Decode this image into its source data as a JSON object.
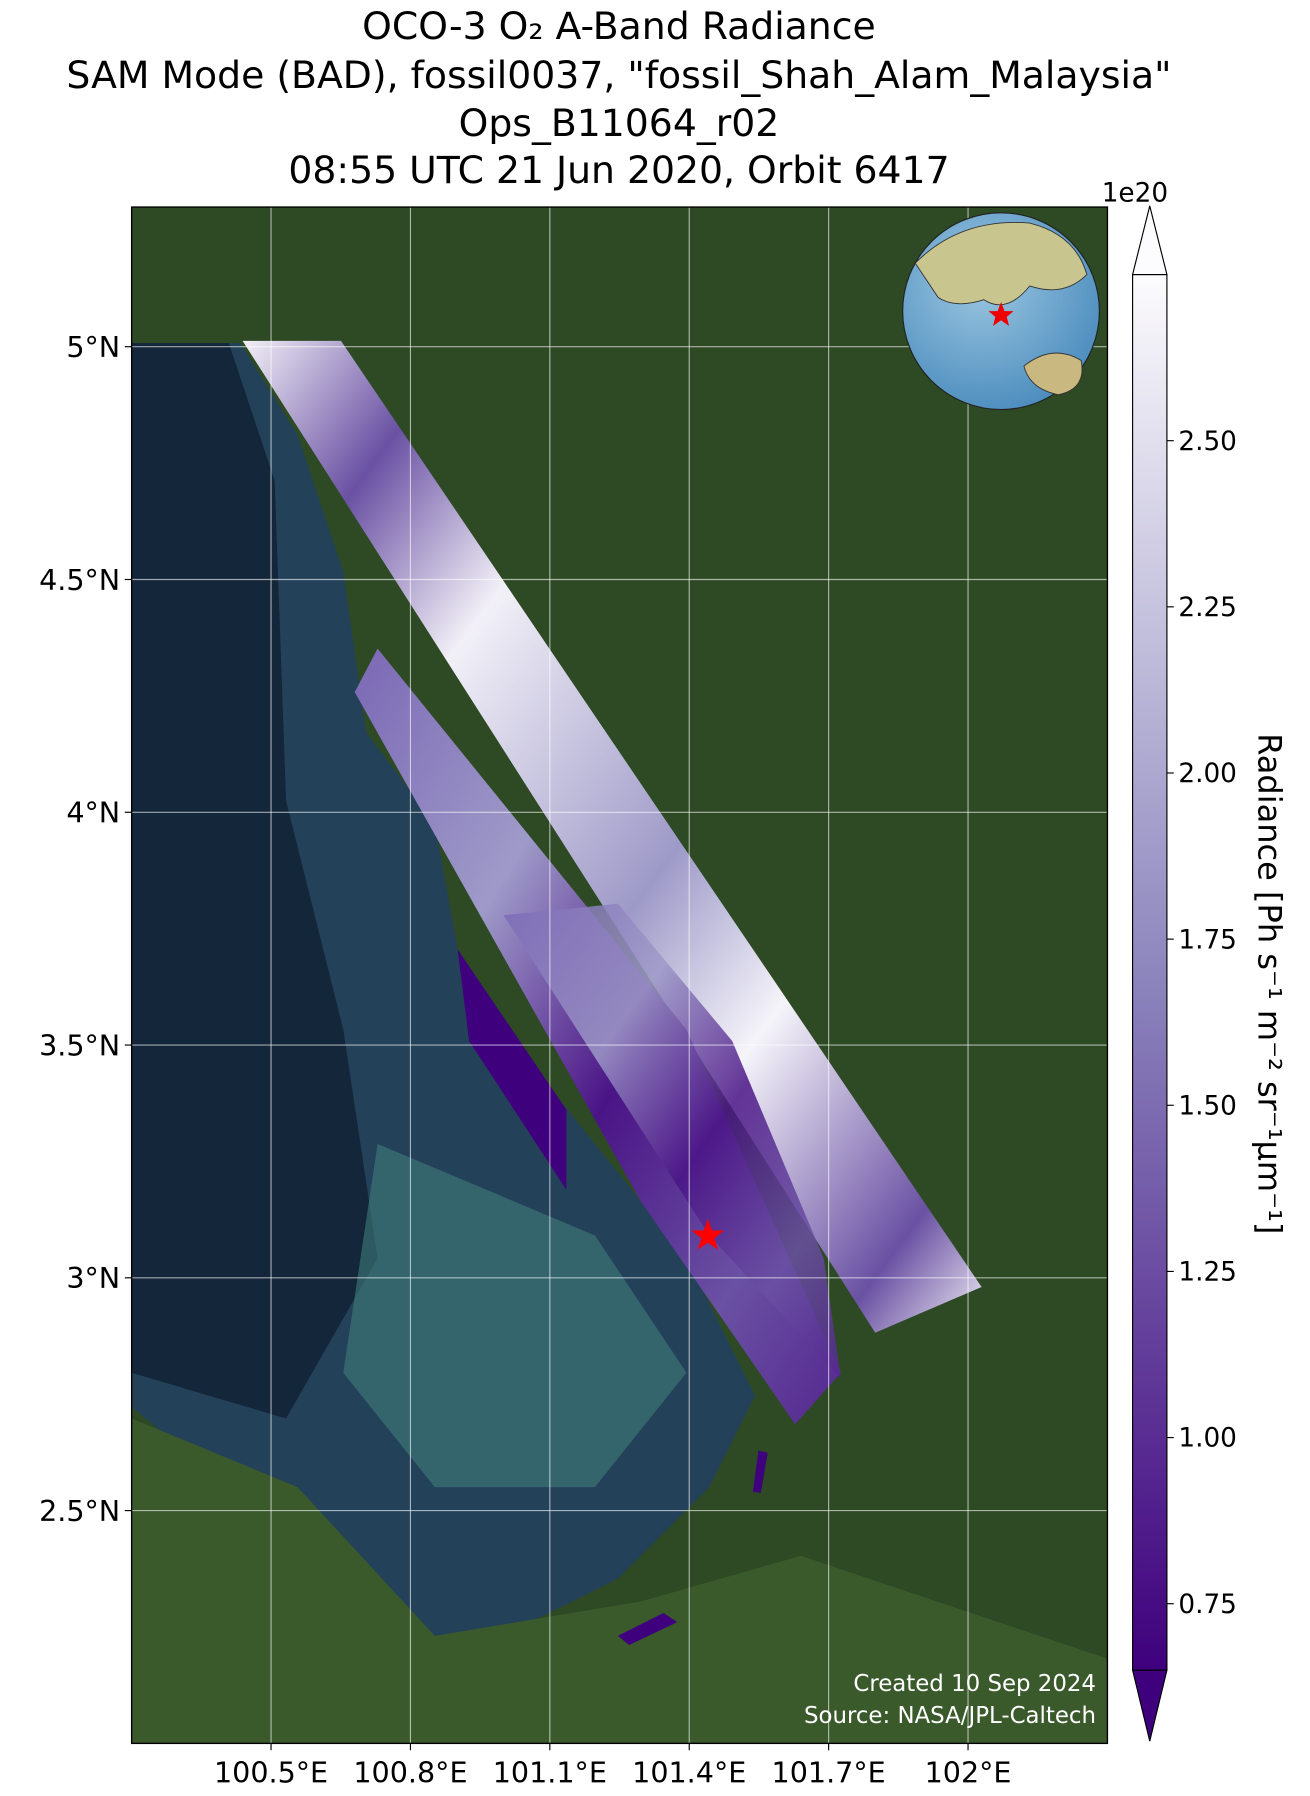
{
  "map": {
    "title": [
      "OCO-3 O₂ A-Band Radiance",
      "SAM Mode (BAD), fossil0037, \"fossil_Shah_Alam_Malaysia\"",
      "Ops_B11064_r02",
      "08:55 UTC 21 Jun 2020, Orbit 6417"
    ],
    "xlim": [
      100.2,
      102.3
    ],
    "ylim": [
      2.0,
      5.3
    ],
    "xticks": [
      {
        "value": 100.5,
        "label": "100.5°E"
      },
      {
        "value": 100.8,
        "label": "100.8°E"
      },
      {
        "value": 101.1,
        "label": "101.1°E"
      },
      {
        "value": 101.4,
        "label": "101.4°E"
      },
      {
        "value": 101.7,
        "label": "101.7°E"
      },
      {
        "value": 102,
        "label": "102°E"
      }
    ],
    "yticks": [
      {
        "value": 2.5,
        "label": "2.5°N"
      },
      {
        "value": 3,
        "label": "3°N"
      },
      {
        "value": 3.5,
        "label": "3.5°N"
      },
      {
        "value": 4,
        "label": "4°N"
      },
      {
        "value": 4.5,
        "label": "4.5°N"
      },
      {
        "value": 5,
        "label": "5°N"
      }
    ],
    "grid": true,
    "site": {
      "lon": 101.44,
      "lat": 3.09,
      "color": "#ff0000"
    },
    "credits": [
      "Created 10 Sep 2024",
      "Source: NASA/JPL-Caltech"
    ],
    "colorbar": {
      "label": "Radiance [Ph s⁻¹ m⁻² sr⁻¹μm⁻¹]",
      "multiplier": "1e20",
      "lim": [
        0.65,
        2.75
      ],
      "ticks": [
        0.75,
        {
          "value": 1.0,
          "label": "1.00"
        },
        1.25,
        {
          "value": 1.5,
          "label": "1.50"
        },
        1.75,
        {
          "value": 2.0,
          "label": "2.00"
        },
        2.25,
        {
          "value": 2.5,
          "label": "2.50"
        }
      ],
      "colors": [
        "#3f007d",
        "#fcfbfd"
      ],
      "extend": "both"
    }
  }
}
